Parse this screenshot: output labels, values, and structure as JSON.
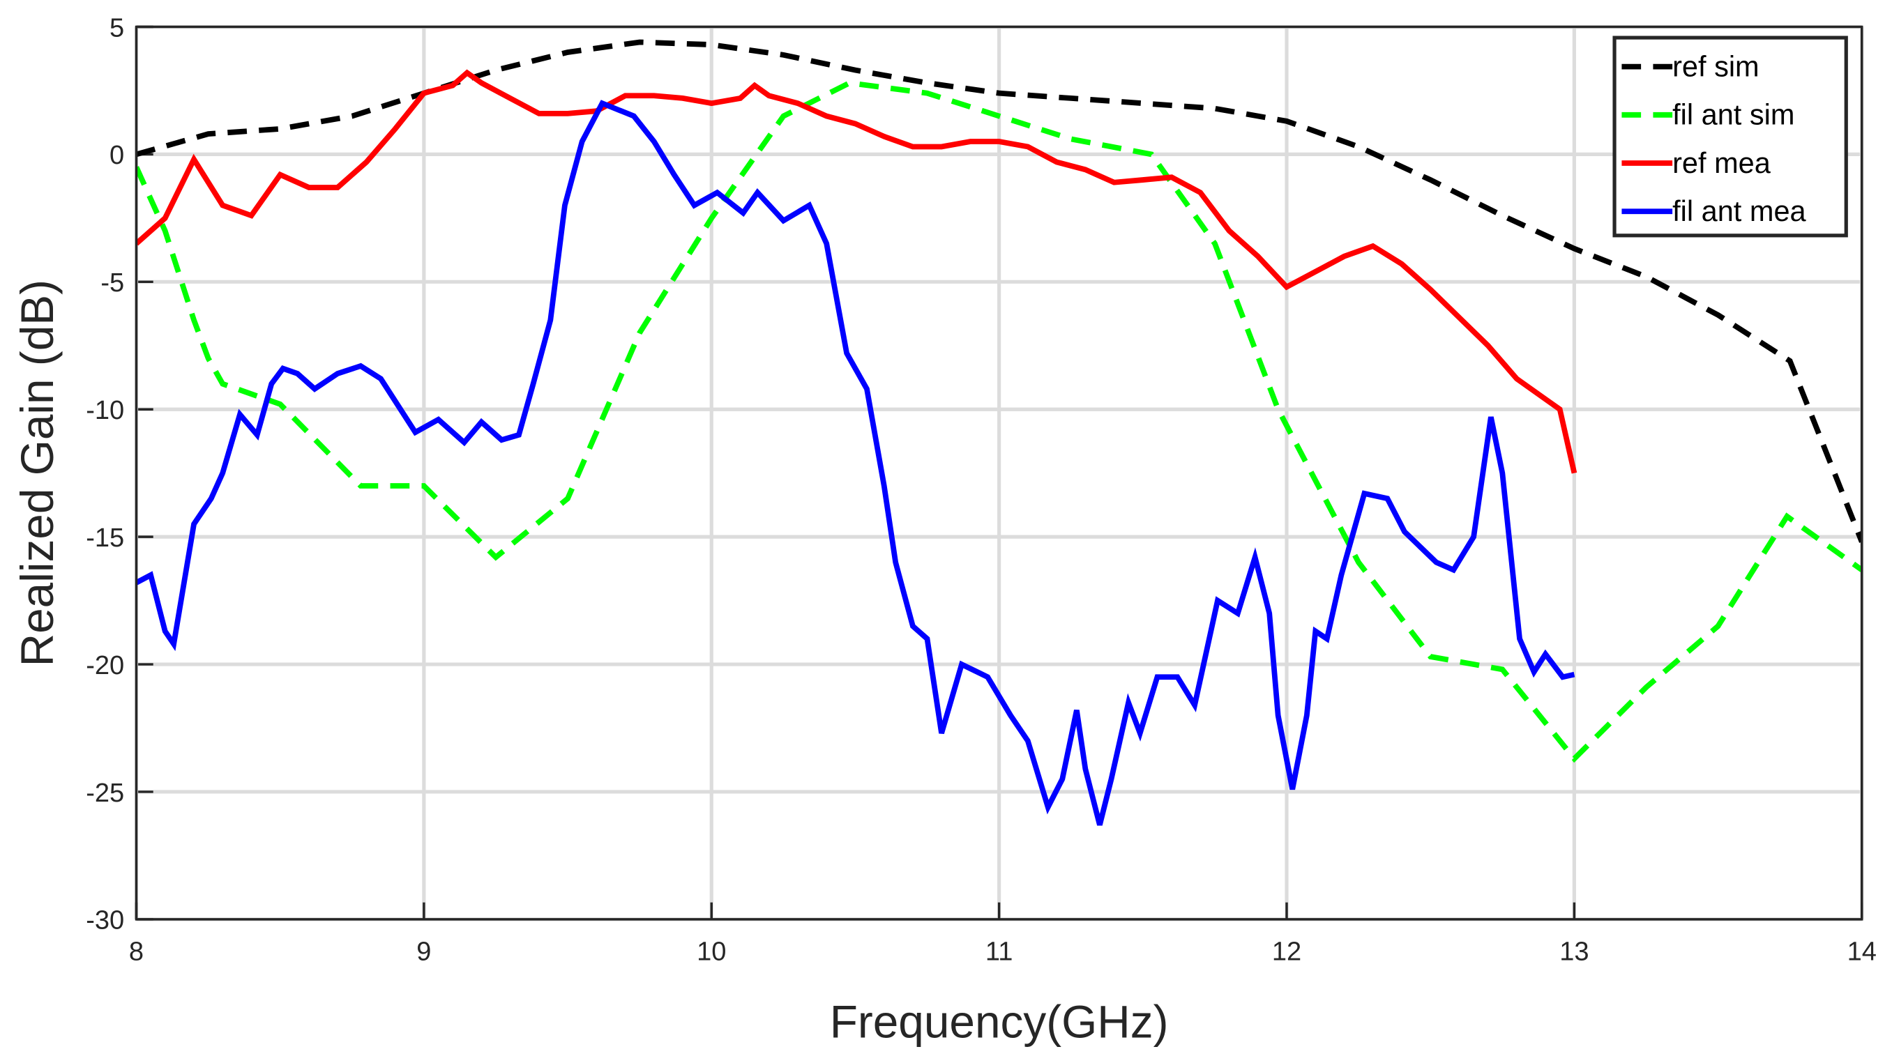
{
  "chart_data": {
    "type": "line",
    "xlabel": "Frequency(GHz)",
    "ylabel": "Realized Gain (dB)",
    "xlim": [
      8,
      14
    ],
    "ylim": [
      -30,
      5
    ],
    "xticks": [
      8,
      9,
      10,
      11,
      12,
      13,
      14
    ],
    "yticks": [
      -30,
      -25,
      -20,
      -15,
      -10,
      -5,
      0,
      5
    ],
    "grid": true,
    "legend": "upper right",
    "series": [
      {
        "name": "ref sim",
        "color": "#000000",
        "dash": true,
        "x": [
          8,
          8.25,
          8.5,
          8.75,
          9,
          9.25,
          9.5,
          9.75,
          10,
          10.25,
          10.5,
          10.75,
          11,
          11.25,
          11.5,
          11.75,
          12,
          12.25,
          12.5,
          12.75,
          13,
          13.25,
          13.5,
          13.75,
          14
        ],
        "values": [
          0,
          0.8,
          1.0,
          1.5,
          2.4,
          3.3,
          4.0,
          4.4,
          4.3,
          3.9,
          3.3,
          2.8,
          2.4,
          2.2,
          2.0,
          1.8,
          1.3,
          0.3,
          -1.0,
          -2.4,
          -3.7,
          -4.8,
          -6.3,
          -8.1,
          -15.2
        ]
      },
      {
        "name": "fil ant sim",
        "color": "#00ff00",
        "dash": true,
        "x": [
          8,
          8.1,
          8.2,
          8.25,
          8.3,
          8.5,
          8.78,
          9,
          9.25,
          9.5,
          9.75,
          10,
          10.25,
          10.48,
          10.75,
          11,
          11.25,
          11.53,
          11.75,
          11.97,
          12.25,
          12.5,
          12.75,
          13,
          13.25,
          13.5,
          13.74,
          14
        ],
        "values": [
          -0.5,
          -3,
          -6.5,
          -8,
          -9,
          -9.8,
          -13,
          -13,
          -15.8,
          -13.5,
          -7,
          -2.5,
          1.5,
          2.8,
          2.4,
          1.5,
          0.6,
          0,
          -3.5,
          -10,
          -16,
          -19.7,
          -20.2,
          -23.7,
          -20.9,
          -18.5,
          -14.2,
          -16.3
        ]
      },
      {
        "name": "ref mea",
        "color": "#ff0000",
        "dash": false,
        "x": [
          8,
          8.1,
          8.2,
          8.3,
          8.4,
          8.5,
          8.6,
          8.7,
          8.8,
          8.9,
          9,
          9.1,
          9.15,
          9.2,
          9.3,
          9.4,
          9.5,
          9.6,
          9.7,
          9.8,
          9.9,
          10,
          10.1,
          10.15,
          10.2,
          10.3,
          10.4,
          10.5,
          10.6,
          10.7,
          10.8,
          10.9,
          11,
          11.1,
          11.2,
          11.3,
          11.4,
          11.5,
          11.6,
          11.7,
          11.8,
          11.9,
          12,
          12.1,
          12.2,
          12.3,
          12.4,
          12.5,
          12.6,
          12.7,
          12.8,
          12.9,
          12.95,
          13
        ],
        "values": [
          -3.5,
          -2.5,
          -0.2,
          -2.0,
          -2.4,
          -0.8,
          -1.3,
          -1.3,
          -0.3,
          1.0,
          2.4,
          2.7,
          3.2,
          2.8,
          2.2,
          1.6,
          1.6,
          1.7,
          2.3,
          2.3,
          2.2,
          2.0,
          2.2,
          2.7,
          2.3,
          2.0,
          1.5,
          1.2,
          0.7,
          0.3,
          0.3,
          0.5,
          0.5,
          0.3,
          -0.3,
          -0.6,
          -1.1,
          -1.0,
          -0.9,
          -1.5,
          -3.0,
          -4.0,
          -5.2,
          -4.6,
          -4.0,
          -3.6,
          -4.3,
          -5.3,
          -6.4,
          -7.5,
          -8.8,
          -9.6,
          -10,
          -12.5
        ]
      },
      {
        "name": "fil ant mea",
        "color": "#0000ff",
        "dash": false,
        "x": [
          8,
          8.05,
          8.1,
          8.13,
          8.2,
          8.26,
          8.3,
          8.36,
          8.42,
          8.47,
          8.51,
          8.56,
          8.62,
          8.7,
          8.78,
          8.85,
          8.97,
          9.05,
          9.14,
          9.2,
          9.27,
          9.33,
          9.38,
          9.44,
          9.49,
          9.55,
          9.62,
          9.73,
          9.8,
          9.87,
          9.94,
          10.02,
          10.11,
          10.16,
          10.25,
          10.34,
          10.4,
          10.47,
          10.54,
          10.6,
          10.64,
          10.7,
          10.75,
          10.8,
          10.87,
          10.96,
          11.04,
          11.1,
          11.17,
          11.22,
          11.27,
          11.3,
          11.35,
          11.39,
          11.45,
          11.49,
          11.55,
          11.62,
          11.68,
          11.76,
          11.83,
          11.89,
          11.94,
          11.97,
          12.02,
          12.07,
          12.1,
          12.14,
          12.19,
          12.27,
          12.35,
          12.41,
          12.52,
          12.58,
          12.65,
          12.71,
          12.75,
          12.81,
          12.86,
          12.9,
          12.96,
          13
        ],
        "values": [
          -16.8,
          -16.5,
          -18.7,
          -19.2,
          -14.5,
          -13.5,
          -12.5,
          -10.2,
          -11.0,
          -9.0,
          -8.4,
          -8.6,
          -9.2,
          -8.6,
          -8.3,
          -8.8,
          -10.9,
          -10.4,
          -11.3,
          -10.5,
          -11.2,
          -11.0,
          -9.0,
          -6.5,
          -2.0,
          0.5,
          2.0,
          1.5,
          0.5,
          -0.8,
          -2.0,
          -1.5,
          -2.3,
          -1.5,
          -2.6,
          -2.0,
          -3.5,
          -7.8,
          -9.2,
          -13.0,
          -16.0,
          -18.5,
          -19.0,
          -22.7,
          -20.0,
          -20.5,
          -22.0,
          -23.0,
          -25.6,
          -24.5,
          -21.8,
          -24.1,
          -26.3,
          -24.5,
          -21.5,
          -22.7,
          -20.5,
          -20.5,
          -21.6,
          -17.5,
          -18.0,
          -15.8,
          -18.0,
          -22.0,
          -24.9,
          -22.0,
          -18.7,
          -19.0,
          -16.5,
          -13.3,
          -13.5,
          -14.8,
          -16.0,
          -16.3,
          -15.0,
          -10.3,
          -12.5,
          -19.0,
          -20.3,
          -19.6,
          -20.5,
          -20.4
        ]
      }
    ]
  }
}
